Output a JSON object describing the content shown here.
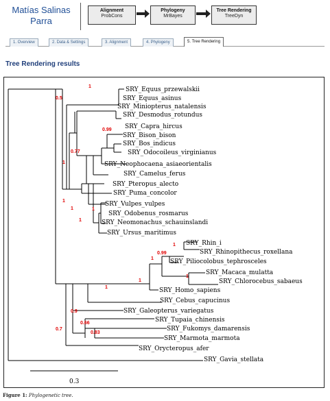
{
  "header": {
    "user_name": "Matías Salinas Parra",
    "steps": [
      {
        "title": "Alignment",
        "subtitle": "ProbCons"
      },
      {
        "title": "Phylogeny",
        "subtitle": "MrBayes"
      },
      {
        "title": "Tree Rendering",
        "subtitle": "TreeDyn"
      }
    ]
  },
  "tabs": [
    {
      "label": "1. Overview"
    },
    {
      "label": "2. Data & Settings"
    },
    {
      "label": "3. Alignment"
    },
    {
      "label": "4. Phylogeny"
    },
    {
      "label": "5. Tree Rendering",
      "active": true
    }
  ],
  "section_title": "Tree Rendering results",
  "tree": {
    "leaves": [
      "SRY_Equus_przewalskii",
      "SRY_Equus_asinus",
      "SRY_Miniopterus_natalensis",
      "SRY_Desmodus_rotundus",
      "SRY_Capra_hircus",
      "SRY_Bison_bison",
      "SRY_Bos_indicus",
      "SRY_Odocoileus_virginianus",
      "SRY_Neophocaena_asiaeorientalis",
      "SRY_Camelus_ferus",
      "SRY_Pteropus_alecto",
      "SRY_Puma_concolor",
      "SRY_Vulpes_vulpes",
      "SRY_Odobenus_rosmarus",
      "SRY_Neomonachus_schauinslandi",
      "SRY_Ursus_maritimus",
      "SRY_Rhin_i",
      "SRY_Rhinopithecus_roxellana",
      "SRY_Piliocolobus_tephrosceles",
      "SRY_Macaca_mulatta",
      "SRY_Chlorocebus_sabaeus",
      "SRY_Homo_sapiens",
      "SRY_Cebus_capucinus",
      "SRY_Galeopterus_variegatus",
      "SRY_Tupaia_chinensis",
      "SRY_Fukomys_damarensis",
      "SRY_Marmota_marmota",
      "SRY_Orycteropus_afer",
      "SRY_Gavia_stellata"
    ],
    "support_values": [
      "1",
      "0.5",
      "0.99",
      "0.77",
      "1",
      "1",
      "1",
      "1",
      "1",
      "1",
      "0.99",
      "1",
      "1",
      "1",
      "1",
      "0.9",
      "0.66",
      "0.83",
      "0.7"
    ],
    "scale_bar_label": "0.3",
    "support_color": "#e00000"
  },
  "caption": {
    "label": "Figure 1:",
    "text": "Phylogenetic tree."
  }
}
